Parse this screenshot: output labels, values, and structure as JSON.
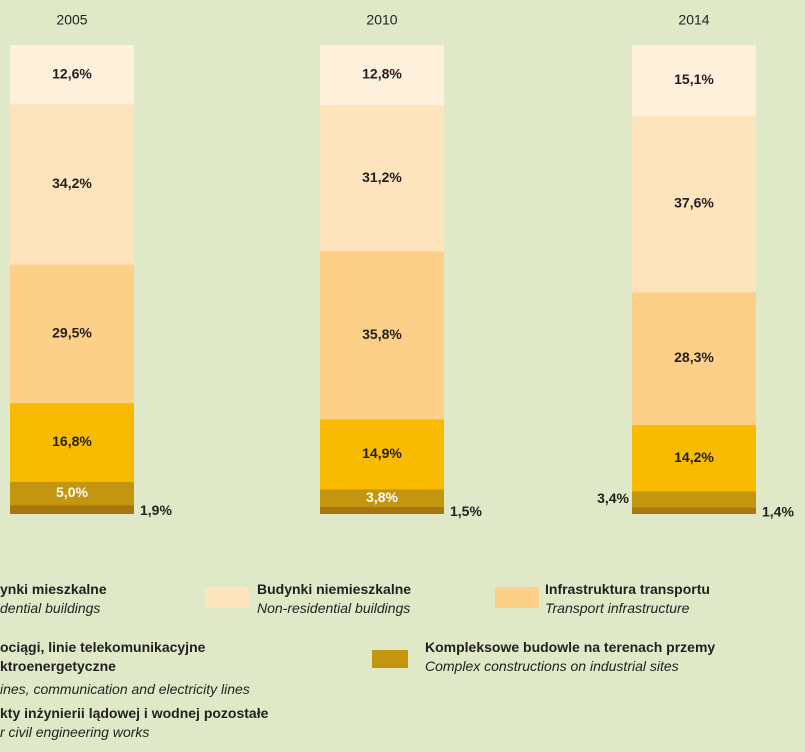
{
  "chart_data": {
    "type": "stacked_bar_100",
    "categories": [
      "2005",
      "2010",
      "2014"
    ],
    "ylim": [
      0,
      100
    ],
    "series": [
      {
        "name": "kty inżynierii lądowej i wodnej pozostałe",
        "name_en": "r civil engineering works",
        "color": "#a6780e",
        "values": [
          1.9,
          1.5,
          1.4
        ],
        "value_labels": [
          "1,9%",
          "1,5%",
          "1,4%"
        ]
      },
      {
        "name": "Kompleksowe budowle na terenach przemy",
        "name_en": "Complex constructions on industrial sites",
        "color": "#c4950f",
        "values": [
          5.0,
          3.8,
          3.4
        ],
        "value_labels": [
          "5,0%",
          "3,8%",
          "3,4%"
        ]
      },
      {
        "name": "ociągi, linie telekomunikacyjne ktroenergetyczne",
        "name_en": "ines, communication and electricity lines",
        "color": "#f8bb00",
        "values": [
          16.8,
          14.9,
          14.2
        ],
        "value_labels": [
          "16,8%",
          "14,9%",
          "14,2%"
        ]
      },
      {
        "name": "Infrastruktura transportu",
        "name_en": "Transport infrastructure",
        "color": "#fdd089",
        "values": [
          29.5,
          35.8,
          28.3
        ],
        "value_labels": [
          "29,5%",
          "35,8%",
          "28,3%"
        ]
      },
      {
        "name": "Budynki niemieszkalne",
        "name_en": "Non-residential buildings",
        "color": "#fee4bc",
        "values": [
          34.2,
          31.2,
          37.6
        ],
        "value_labels": [
          "34,2%",
          "31,2%",
          "37,6%"
        ]
      },
      {
        "name": "ynki mieszkalne",
        "name_en": "dential buildings",
        "color": "#fff0dc",
        "values": [
          12.6,
          12.8,
          15.1
        ],
        "value_labels": [
          "12,6%",
          "12,8%",
          "15,1%"
        ]
      }
    ]
  }
}
